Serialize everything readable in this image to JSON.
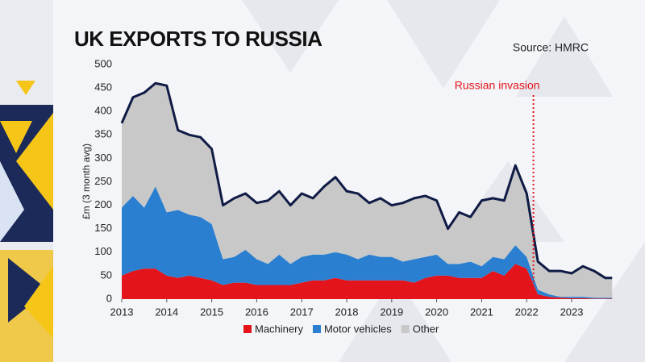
{
  "chart_data": {
    "type": "stacked-area",
    "title": "UK EXPORTS TO RUSSIA",
    "source": "Source: HMRC",
    "y_label": "£m (3 month avg)",
    "x": [
      2013,
      2013.25,
      2013.5,
      2013.75,
      2014,
      2014.25,
      2014.5,
      2014.75,
      2015,
      2015.25,
      2015.5,
      2015.75,
      2016,
      2016.25,
      2016.5,
      2016.75,
      2017,
      2017.25,
      2017.5,
      2017.75,
      2018,
      2018.25,
      2018.5,
      2018.75,
      2019,
      2019.25,
      2019.5,
      2019.75,
      2020,
      2020.25,
      2020.5,
      2020.75,
      2021,
      2021.25,
      2021.5,
      2021.75,
      2022,
      2022.25,
      2022.5,
      2022.75,
      2023,
      2023.25,
      2023.5,
      2023.75,
      2023.9
    ],
    "series": [
      {
        "name": "Machinery",
        "color": "#e3141b",
        "values": [
          50,
          60,
          65,
          65,
          50,
          45,
          50,
          45,
          40,
          30,
          35,
          35,
          30,
          30,
          30,
          30,
          35,
          40,
          40,
          45,
          40,
          40,
          40,
          40,
          40,
          40,
          35,
          45,
          50,
          50,
          45,
          45,
          45,
          60,
          50,
          75,
          65,
          10,
          5,
          3,
          2,
          2,
          1,
          1,
          1
        ]
      },
      {
        "name": "Motor vehicles",
        "color": "#2a7fd0",
        "values": [
          145,
          160,
          130,
          175,
          135,
          145,
          130,
          130,
          120,
          55,
          55,
          70,
          55,
          45,
          65,
          45,
          55,
          55,
          55,
          55,
          55,
          45,
          55,
          50,
          50,
          40,
          50,
          45,
          45,
          25,
          30,
          35,
          25,
          30,
          35,
          40,
          25,
          10,
          5,
          2,
          3,
          3,
          2,
          2,
          2
        ]
      },
      {
        "name": "Other",
        "color": "#c8c8c8",
        "values": [
          180,
          210,
          245,
          220,
          270,
          170,
          170,
          170,
          160,
          115,
          125,
          120,
          120,
          135,
          135,
          125,
          135,
          120,
          145,
          160,
          135,
          140,
          110,
          125,
          110,
          125,
          130,
          130,
          115,
          75,
          110,
          95,
          140,
          125,
          125,
          170,
          135,
          60,
          50,
          55,
          50,
          65,
          57,
          42,
          42
        ]
      }
    ],
    "total_line_color": "#101b45",
    "xlim": [
      2013,
      2024.2
    ],
    "xticks": [
      2013,
      2014,
      2015,
      2016,
      2017,
      2018,
      2019,
      2020,
      2021,
      2022,
      2023
    ],
    "ylim": [
      0,
      500
    ],
    "yticks": [
      0,
      50,
      100,
      150,
      200,
      250,
      300,
      350,
      400,
      450,
      500
    ],
    "grid": false,
    "annotation": {
      "x": 2022.15,
      "label": "Russian invasion",
      "color": "#e3141b"
    }
  }
}
